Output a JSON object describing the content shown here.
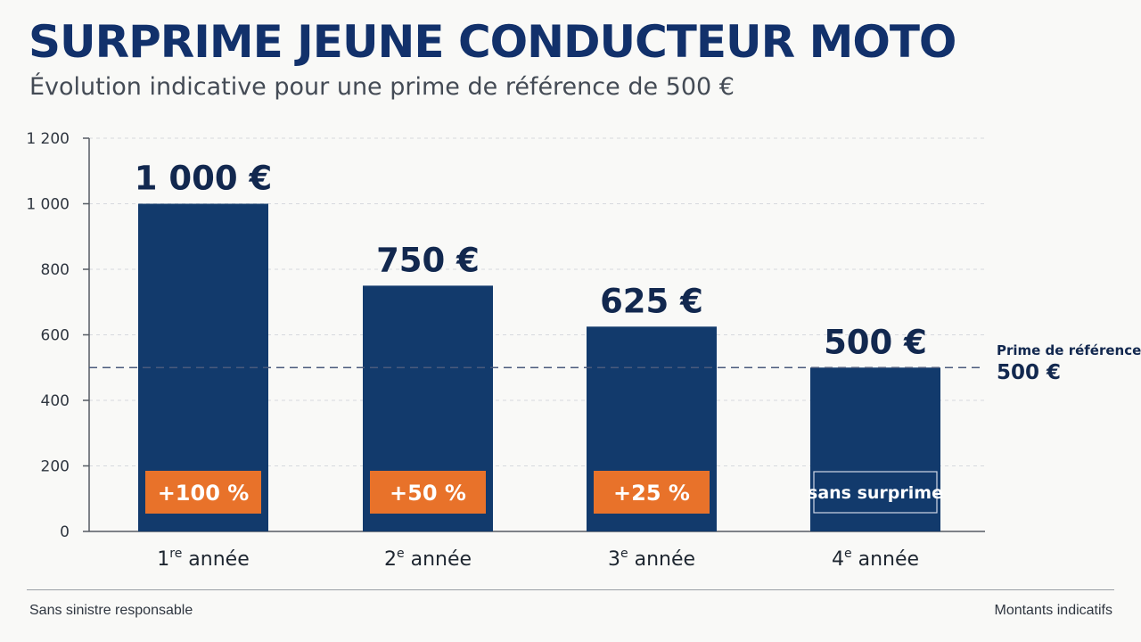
{
  "colors": {
    "bar": "#123a6c",
    "badge": "#e8722a",
    "badge_plain_border": "#cfd8e6",
    "title": "#12316b",
    "ref_line": "#4a5a7c",
    "grid": "#d6d9de"
  },
  "chart_data": {
    "type": "bar",
    "title": "SURPRIME JEUNE CONDUCTEUR MOTO",
    "subtitle": "Évolution indicative pour une prime de référence de 500 €",
    "categories": [
      {
        "base": "1",
        "sup": "re",
        "rest": " année"
      },
      {
        "base": "2",
        "sup": "e",
        "rest": " année"
      },
      {
        "base": "3",
        "sup": "e",
        "rest": " année"
      },
      {
        "base": "4",
        "sup": "e",
        "rest": " année"
      }
    ],
    "values": [
      1000,
      750,
      625,
      500
    ],
    "value_labels": [
      "1 000 €",
      "750 €",
      "625 €",
      "500 €"
    ],
    "badges": [
      "+100 %",
      "+50 %",
      "+25 %",
      "sans surprime"
    ],
    "y_ticks": [
      0,
      200,
      400,
      600,
      800,
      1000,
      1200
    ],
    "y_tick_labels": [
      "0",
      "200",
      "400",
      "600",
      "800",
      "1 000",
      "1 200"
    ],
    "ylim": [
      0,
      1200
    ],
    "grid": true,
    "reference_line": {
      "value": 500,
      "label_line1": "Prime de référence :",
      "label_line2": "500 €"
    }
  },
  "footer": {
    "left": "Sans sinistre responsable",
    "right": "Montants indicatifs"
  }
}
